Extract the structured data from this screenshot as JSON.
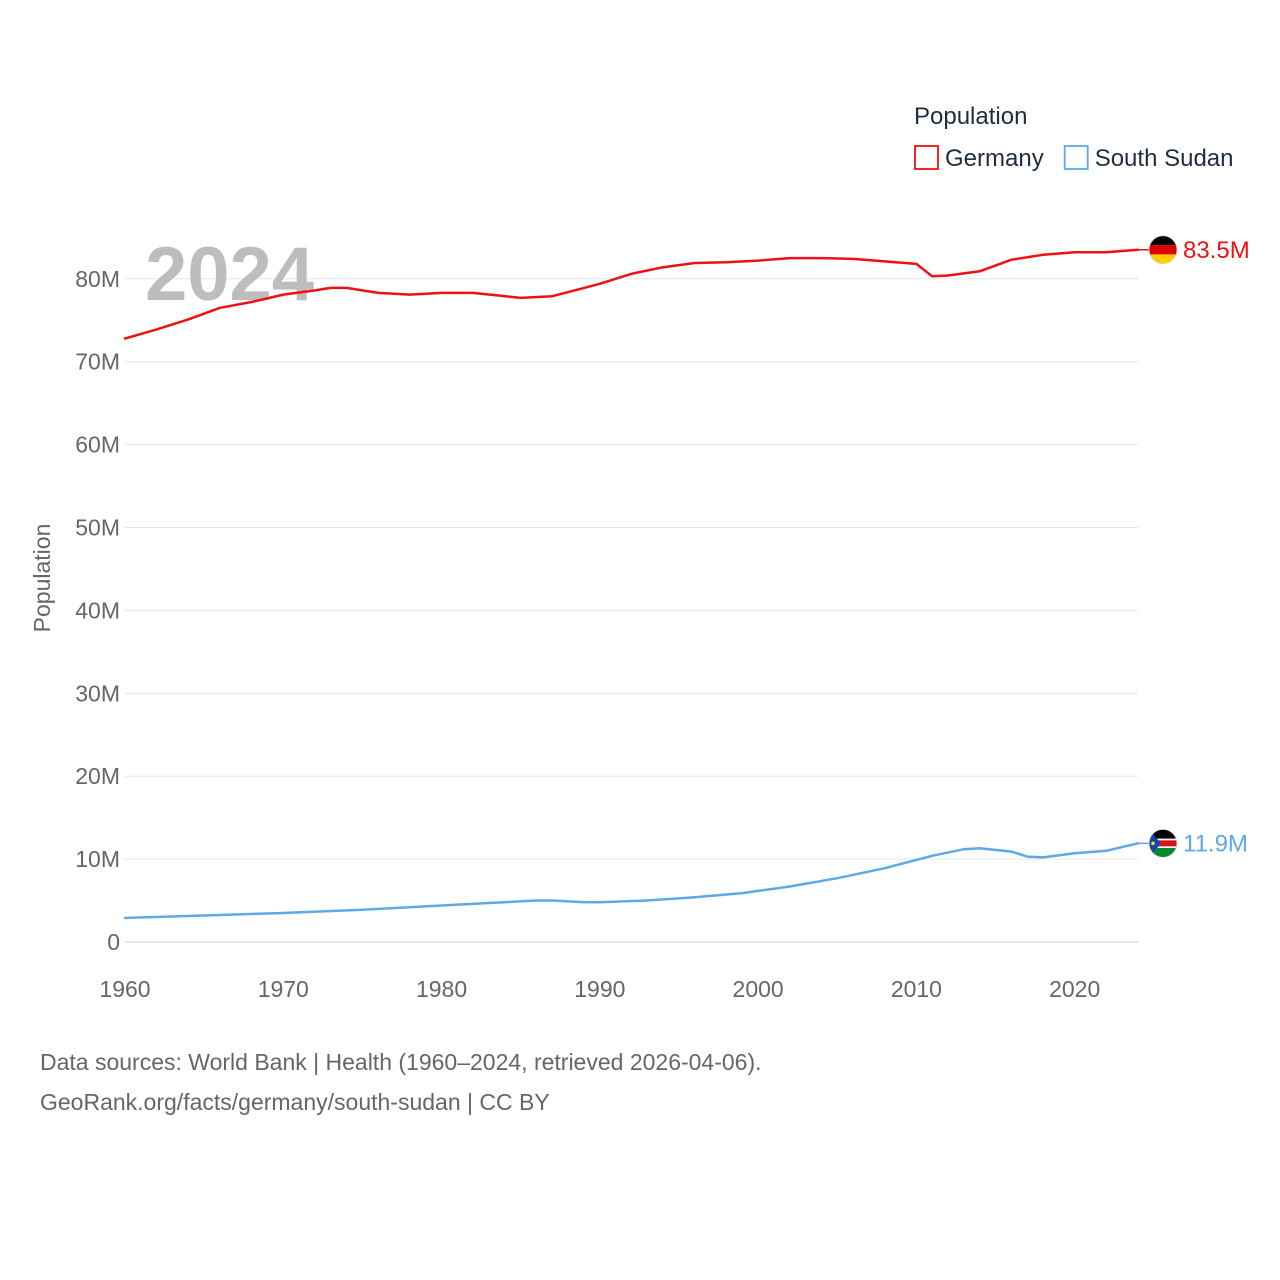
{
  "chart_data": {
    "type": "line",
    "title": "",
    "current_year": "2024",
    "ylabel": "Population",
    "xlabel": "",
    "xlim": [
      1960,
      2024
    ],
    "ylim": [
      0,
      85
    ],
    "x_ticks": [
      1960,
      1970,
      1980,
      1990,
      2000,
      2010,
      2020
    ],
    "y_ticks": [
      {
        "value": 0,
        "label": "0"
      },
      {
        "value": 10,
        "label": "10M"
      },
      {
        "value": 20,
        "label": "20M"
      },
      {
        "value": 30,
        "label": "30M"
      },
      {
        "value": 40,
        "label": "40M"
      },
      {
        "value": 50,
        "label": "50M"
      },
      {
        "value": 60,
        "label": "60M"
      },
      {
        "value": 70,
        "label": "70M"
      },
      {
        "value": 80,
        "label": "80M"
      }
    ],
    "legend": {
      "title": "Population",
      "position": "top-right"
    },
    "series": [
      {
        "name": "Germany",
        "color": "#ee1111",
        "flag": "germany-flag",
        "end_label": "83.5M",
        "points": [
          [
            1960,
            72.8
          ],
          [
            1962,
            73.9
          ],
          [
            1964,
            75.1
          ],
          [
            1966,
            76.5
          ],
          [
            1968,
            77.2
          ],
          [
            1970,
            78.1
          ],
          [
            1972,
            78.6
          ],
          [
            1973,
            78.9
          ],
          [
            1974,
            78.9
          ],
          [
            1976,
            78.3
          ],
          [
            1978,
            78.1
          ],
          [
            1980,
            78.3
          ],
          [
            1982,
            78.3
          ],
          [
            1985,
            77.7
          ],
          [
            1987,
            77.9
          ],
          [
            1988,
            78.4
          ],
          [
            1990,
            79.4
          ],
          [
            1992,
            80.6
          ],
          [
            1994,
            81.4
          ],
          [
            1996,
            81.9
          ],
          [
            1998,
            82.0
          ],
          [
            2000,
            82.2
          ],
          [
            2002,
            82.5
          ],
          [
            2004,
            82.5
          ],
          [
            2006,
            82.4
          ],
          [
            2008,
            82.1
          ],
          [
            2010,
            81.8
          ],
          [
            2011,
            80.3
          ],
          [
            2012,
            80.4
          ],
          [
            2014,
            80.9
          ],
          [
            2016,
            82.3
          ],
          [
            2018,
            82.9
          ],
          [
            2020,
            83.2
          ],
          [
            2022,
            83.2
          ],
          [
            2024,
            83.5
          ]
        ]
      },
      {
        "name": "South Sudan",
        "color": "#5fa8e8",
        "flag": "south-sudan-flag",
        "end_label": "11.9M",
        "points": [
          [
            1960,
            2.9
          ],
          [
            1965,
            3.2
          ],
          [
            1970,
            3.5
          ],
          [
            1975,
            3.9
          ],
          [
            1980,
            4.4
          ],
          [
            1983,
            4.7
          ],
          [
            1986,
            5.0
          ],
          [
            1987,
            5.0
          ],
          [
            1989,
            4.8
          ],
          [
            1990,
            4.8
          ],
          [
            1993,
            5.0
          ],
          [
            1996,
            5.4
          ],
          [
            1999,
            5.9
          ],
          [
            2002,
            6.7
          ],
          [
            2005,
            7.7
          ],
          [
            2008,
            8.9
          ],
          [
            2011,
            10.4
          ],
          [
            2013,
            11.2
          ],
          [
            2014,
            11.3
          ],
          [
            2016,
            10.9
          ],
          [
            2017,
            10.3
          ],
          [
            2018,
            10.2
          ],
          [
            2020,
            10.7
          ],
          [
            2022,
            11.0
          ],
          [
            2024,
            11.9
          ]
        ]
      }
    ]
  },
  "footer": {
    "source_line": "Data sources: World Bank | Health (1960–2024, retrieved 2026-04-06).",
    "credit_line": "GeoRank.org/facts/germany/south-sudan | CC BY"
  }
}
